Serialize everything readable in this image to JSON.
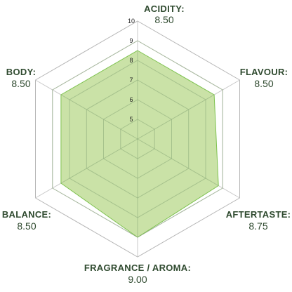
{
  "chart_data": {
    "type": "radar",
    "axes": [
      {
        "name": "ACIDITY:",
        "value_label": "8.50",
        "value": 8.5
      },
      {
        "name": "FLAVOUR:",
        "value_label": "8.50",
        "value": 8.5
      },
      {
        "name": "AFTERTASTE:",
        "value_label": "8.75",
        "value": 8.75
      },
      {
        "name": "FRAGRANCE / AROMA:",
        "value_label": "9.00",
        "value": 9.0
      },
      {
        "name": "BALANCE:",
        "value_label": "8.50",
        "value": 8.5
      },
      {
        "name": "BODY:",
        "value_label": "8.50",
        "value": 8.5
      }
    ],
    "ticks": [
      "5",
      "6",
      "7",
      "8",
      "9",
      "10"
    ],
    "tick_values": [
      5,
      6,
      7,
      8,
      9,
      10
    ],
    "range": [
      4,
      10
    ],
    "grid": true,
    "colors": {
      "fill": "#c5e0a0",
      "stroke": "#7ec24f",
      "grid": "#c8c8c8",
      "grid_outer": "#b5b5b5",
      "label": "#2f4a2f"
    }
  }
}
